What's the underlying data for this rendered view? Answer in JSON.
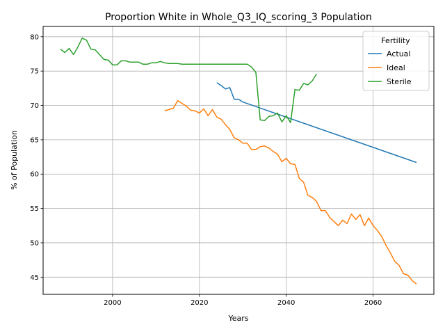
{
  "chart_data": {
    "type": "line",
    "title": "Proportion White in Whole_Q3_IQ_scoring_3 Population",
    "xlabel": "Years",
    "ylabel": "% of Population",
    "xlim": [
      1984,
      2074
    ],
    "ylim": [
      42.5,
      81.5
    ],
    "xticks": [
      2000,
      2020,
      2040,
      2060
    ],
    "yticks": [
      45,
      50,
      55,
      60,
      65,
      70,
      75,
      80
    ],
    "grid": true,
    "legend": {
      "title": "Fertility",
      "position": "top-right"
    },
    "series": [
      {
        "name": "Actual",
        "color": "#1f77b4",
        "x": [
          2024,
          2025,
          2026,
          2027,
          2028,
          2029,
          2030,
          2070
        ],
        "y": [
          73.3,
          72.9,
          72.4,
          72.6,
          70.9,
          70.9,
          70.5,
          61.7
        ]
      },
      {
        "name": "Ideal",
        "color": "#ff7f0e",
        "x": [
          2012,
          2013,
          2014,
          2015,
          2016,
          2017,
          2018,
          2019,
          2020,
          2021,
          2022,
          2023,
          2024,
          2025,
          2026,
          2027,
          2028,
          2029,
          2030,
          2031,
          2032,
          2033,
          2034,
          2035,
          2036,
          2037,
          2038,
          2039,
          2040,
          2041,
          2042,
          2043,
          2044,
          2045,
          2046,
          2047,
          2048,
          2049,
          2050,
          2051,
          2052,
          2053,
          2054,
          2055,
          2056,
          2057,
          2058,
          2059,
          2060,
          2061,
          2062,
          2063,
          2064,
          2065,
          2066,
          2067,
          2068,
          2069,
          2070
        ],
        "y": [
          69.2,
          69.4,
          69.6,
          70.7,
          70.3,
          69.9,
          69.3,
          69.2,
          68.9,
          69.5,
          68.5,
          69.4,
          68.3,
          68.0,
          67.2,
          66.5,
          65.3,
          65.0,
          64.5,
          64.5,
          63.6,
          63.6,
          64.0,
          64.1,
          63.8,
          63.3,
          62.9,
          61.8,
          62.3,
          61.5,
          61.4,
          59.4,
          58.8,
          56.9,
          56.6,
          56.0,
          54.7,
          54.7,
          53.7,
          53.1,
          52.5,
          53.3,
          52.8,
          54.2,
          53.4,
          54.1,
          52.5,
          53.6,
          52.5,
          51.8,
          50.9,
          49.6,
          48.5,
          47.3,
          46.7,
          45.5,
          45.3,
          44.5,
          44.0
        ]
      },
      {
        "name": "Sterile",
        "color": "#2ca02c",
        "x": [
          1988,
          1989,
          1990,
          1991,
          1992,
          1993,
          1994,
          1995,
          1996,
          1997,
          1998,
          1999,
          2000,
          2001,
          2002,
          2003,
          2004,
          2005,
          2006,
          2007,
          2008,
          2009,
          2010,
          2011,
          2012,
          2013,
          2014,
          2015,
          2016,
          2017,
          2018,
          2019,
          2020,
          2021,
          2022,
          2023,
          2024,
          2025,
          2026,
          2027,
          2028,
          2029,
          2030,
          2031,
          2032,
          2033,
          2034,
          2035,
          2036,
          2037,
          2038,
          2039,
          2040,
          2041,
          2042,
          2043,
          2044,
          2045,
          2046,
          2047
        ],
        "y": [
          78.2,
          77.7,
          78.3,
          77.4,
          78.5,
          79.8,
          79.5,
          78.2,
          78.1,
          77.4,
          76.7,
          76.6,
          75.9,
          75.9,
          76.5,
          76.5,
          76.3,
          76.3,
          76.3,
          76.0,
          76.0,
          76.2,
          76.2,
          76.4,
          76.2,
          76.1,
          76.1,
          76.1,
          76.0,
          76.0,
          76.0,
          76.0,
          76.0,
          76.0,
          76.0,
          76.0,
          76.0,
          76.0,
          76.0,
          76.0,
          76.0,
          76.0,
          76.0,
          76.0,
          75.6,
          74.8,
          67.9,
          67.8,
          68.4,
          68.5,
          68.9,
          67.6,
          68.5,
          67.5,
          72.3,
          72.2,
          73.2,
          73.0,
          73.6,
          74.6
        ]
      }
    ]
  }
}
